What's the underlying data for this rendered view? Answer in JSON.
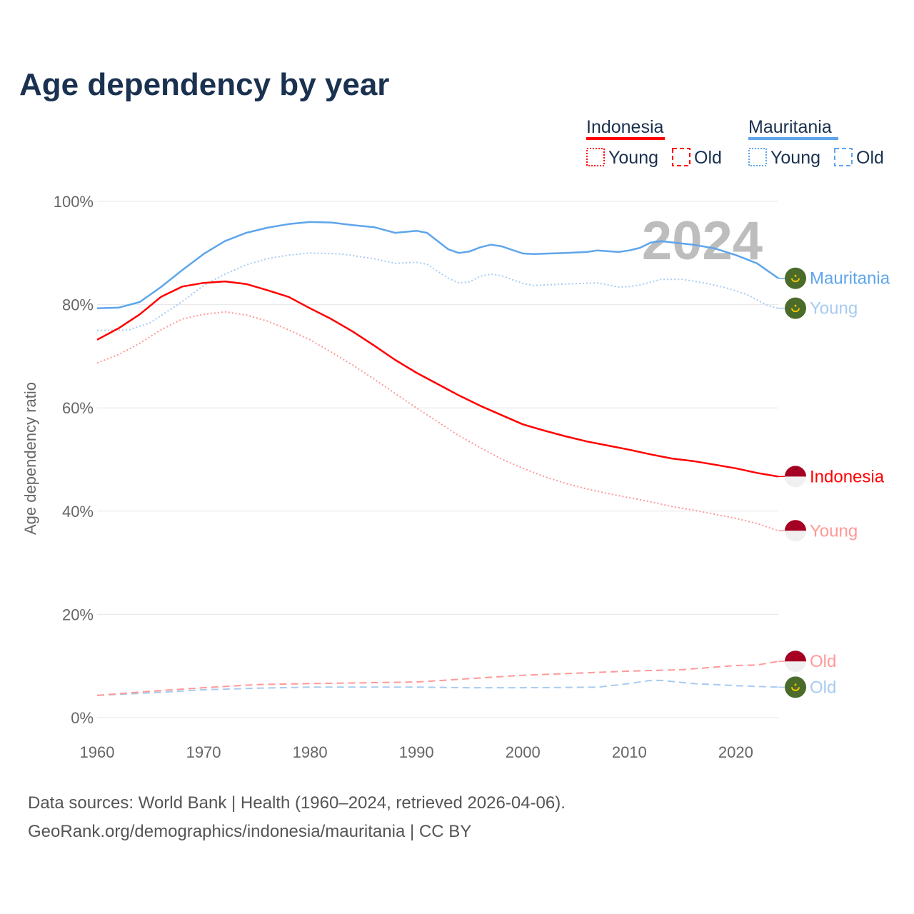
{
  "chart_data": {
    "type": "line",
    "title": "Age dependency by year",
    "ylabel": "Age dependency ratio",
    "xlabel": "",
    "xlim": [
      1960,
      2024
    ],
    "ylim": [
      0,
      100
    ],
    "x_ticks": [
      1960,
      1970,
      1980,
      1990,
      2000,
      2010,
      2020
    ],
    "y_ticks": [
      0,
      20,
      40,
      60,
      80,
      100
    ],
    "y_tick_labels": [
      "0%",
      "20%",
      "40%",
      "60%",
      "80%",
      "100%"
    ],
    "grid": true,
    "year_watermark": "2024",
    "legend": {
      "placement": "top-right",
      "groups": [
        {
          "name": "Indonesia",
          "color": "#ff0000",
          "items": [
            "Young",
            "Old"
          ]
        },
        {
          "name": "Mauritania",
          "color": "#5ea5ec",
          "items": [
            "Young",
            "Old"
          ]
        }
      ]
    },
    "series": [
      {
        "name": "Mauritania",
        "country": "Mauritania",
        "label": "Mauritania",
        "color": "#5ea5ec",
        "style": "solid",
        "points": [
          [
            1960,
            79.3
          ],
          [
            1962,
            79.4
          ],
          [
            1964,
            80.5
          ],
          [
            1966,
            83.4
          ],
          [
            1968,
            86.7
          ],
          [
            1970,
            89.8
          ],
          [
            1972,
            92.3
          ],
          [
            1974,
            93.9
          ],
          [
            1976,
            94.9
          ],
          [
            1978,
            95.6
          ],
          [
            1980,
            96.0
          ],
          [
            1982,
            95.9
          ],
          [
            1984,
            95.4
          ],
          [
            1986,
            95.0
          ],
          [
            1988,
            93.9
          ],
          [
            1990,
            94.3
          ],
          [
            1991,
            93.9
          ],
          [
            1993,
            90.7
          ],
          [
            1994,
            90.0
          ],
          [
            1995,
            90.3
          ],
          [
            1996,
            91.1
          ],
          [
            1997,
            91.6
          ],
          [
            1998,
            91.3
          ],
          [
            1999,
            90.6
          ],
          [
            2000,
            89.9
          ],
          [
            2001,
            89.8
          ],
          [
            2004,
            90.0
          ],
          [
            2006,
            90.2
          ],
          [
            2007,
            90.5
          ],
          [
            2009,
            90.2
          ],
          [
            2010,
            90.5
          ],
          [
            2011,
            91.0
          ],
          [
            2012,
            92.0
          ],
          [
            2013,
            92.3
          ],
          [
            2016,
            91.6
          ],
          [
            2018,
            90.9
          ],
          [
            2020,
            89.6
          ],
          [
            2022,
            88.0
          ],
          [
            2024,
            85.1
          ]
        ]
      },
      {
        "name": "Mauritania Young",
        "country": "Mauritania",
        "label": "Young",
        "color": "#a8cbf0",
        "style": "dotted",
        "points": [
          [
            1960,
            75.0
          ],
          [
            1963,
            75.1
          ],
          [
            1965,
            76.5
          ],
          [
            1968,
            80.6
          ],
          [
            1970,
            83.7
          ],
          [
            1972,
            85.9
          ],
          [
            1974,
            87.7
          ],
          [
            1976,
            88.9
          ],
          [
            1978,
            89.6
          ],
          [
            1980,
            90.0
          ],
          [
            1983,
            89.8
          ],
          [
            1986,
            88.9
          ],
          [
            1988,
            88.0
          ],
          [
            1990,
            88.2
          ],
          [
            1991,
            87.8
          ],
          [
            1993,
            85.1
          ],
          [
            1994,
            84.2
          ],
          [
            1995,
            84.4
          ],
          [
            1996,
            85.5
          ],
          [
            1997,
            85.9
          ],
          [
            1998,
            85.6
          ],
          [
            2000,
            84.1
          ],
          [
            2001,
            83.7
          ],
          [
            2004,
            84.0
          ],
          [
            2007,
            84.2
          ],
          [
            2009,
            83.4
          ],
          [
            2010,
            83.5
          ],
          [
            2011,
            83.8
          ],
          [
            2013,
            84.9
          ],
          [
            2015,
            84.9
          ],
          [
            2017,
            84.2
          ],
          [
            2019,
            83.3
          ],
          [
            2021,
            82.0
          ],
          [
            2023,
            79.8
          ],
          [
            2024,
            79.3
          ]
        ]
      },
      {
        "name": "Mauritania Old",
        "country": "Mauritania",
        "label": "Old",
        "color": "#a8cbf0",
        "style": "dashed",
        "points": [
          [
            1960,
            4.3
          ],
          [
            1965,
            4.8
          ],
          [
            1970,
            5.4
          ],
          [
            1975,
            5.7
          ],
          [
            1980,
            5.9
          ],
          [
            1990,
            5.9
          ],
          [
            1995,
            5.8
          ],
          [
            2000,
            5.8
          ],
          [
            2007,
            5.9
          ],
          [
            2010,
            6.6
          ],
          [
            2012,
            7.2
          ],
          [
            2013,
            7.2
          ],
          [
            2016,
            6.6
          ],
          [
            2020,
            6.2
          ],
          [
            2024,
            5.9
          ]
        ]
      },
      {
        "name": "Indonesia",
        "country": "Indonesia",
        "label": "Indonesia",
        "color": "#ff0000",
        "style": "solid",
        "points": [
          [
            1960,
            73.2
          ],
          [
            1962,
            75.4
          ],
          [
            1964,
            78.1
          ],
          [
            1966,
            81.5
          ],
          [
            1968,
            83.5
          ],
          [
            1970,
            84.2
          ],
          [
            1972,
            84.5
          ],
          [
            1974,
            84.0
          ],
          [
            1976,
            82.8
          ],
          [
            1978,
            81.5
          ],
          [
            1980,
            79.3
          ],
          [
            1982,
            77.2
          ],
          [
            1984,
            74.8
          ],
          [
            1986,
            72.1
          ],
          [
            1988,
            69.3
          ],
          [
            1990,
            66.8
          ],
          [
            1992,
            64.6
          ],
          [
            1994,
            62.4
          ],
          [
            1996,
            60.4
          ],
          [
            1998,
            58.6
          ],
          [
            2000,
            56.8
          ],
          [
            2002,
            55.6
          ],
          [
            2004,
            54.5
          ],
          [
            2006,
            53.5
          ],
          [
            2008,
            52.7
          ],
          [
            2010,
            51.9
          ],
          [
            2012,
            51.0
          ],
          [
            2014,
            50.2
          ],
          [
            2016,
            49.7
          ],
          [
            2018,
            49.0
          ],
          [
            2020,
            48.3
          ],
          [
            2022,
            47.4
          ],
          [
            2024,
            46.7
          ]
        ]
      },
      {
        "name": "Indonesia Young",
        "country": "Indonesia",
        "label": "Young",
        "color": "#ff9999",
        "style": "dotted",
        "points": [
          [
            1960,
            68.7
          ],
          [
            1962,
            70.3
          ],
          [
            1964,
            72.5
          ],
          [
            1966,
            75.1
          ],
          [
            1968,
            77.2
          ],
          [
            1970,
            78.1
          ],
          [
            1972,
            78.6
          ],
          [
            1974,
            78.0
          ],
          [
            1976,
            76.8
          ],
          [
            1978,
            75.1
          ],
          [
            1980,
            73.2
          ],
          [
            1982,
            70.8
          ],
          [
            1984,
            68.3
          ],
          [
            1986,
            65.6
          ],
          [
            1988,
            62.8
          ],
          [
            1990,
            60.0
          ],
          [
            1992,
            57.3
          ],
          [
            1994,
            54.6
          ],
          [
            1996,
            52.3
          ],
          [
            1998,
            50.1
          ],
          [
            2000,
            48.3
          ],
          [
            2002,
            46.7
          ],
          [
            2004,
            45.4
          ],
          [
            2006,
            44.3
          ],
          [
            2008,
            43.4
          ],
          [
            2010,
            42.6
          ],
          [
            2012,
            41.8
          ],
          [
            2014,
            40.9
          ],
          [
            2016,
            40.2
          ],
          [
            2018,
            39.4
          ],
          [
            2020,
            38.6
          ],
          [
            2022,
            37.6
          ],
          [
            2024,
            36.2
          ]
        ]
      },
      {
        "name": "Indonesia Old",
        "country": "Indonesia",
        "label": "Old",
        "color": "#ff9999",
        "style": "dashed",
        "points": [
          [
            1960,
            4.3
          ],
          [
            1965,
            5.1
          ],
          [
            1970,
            5.8
          ],
          [
            1975,
            6.4
          ],
          [
            1980,
            6.6
          ],
          [
            1990,
            6.9
          ],
          [
            2000,
            8.2
          ],
          [
            2005,
            8.6
          ],
          [
            2010,
            9.0
          ],
          [
            2015,
            9.3
          ],
          [
            2020,
            10.1
          ],
          [
            2022,
            10.2
          ],
          [
            2024,
            10.9
          ]
        ]
      }
    ]
  },
  "footer": {
    "line1": "Data sources: World Bank | Health (1960–2024, retrieved 2026-04-06).",
    "line2": "GeoRank.org/demographics/indonesia/mauritania | CC BY"
  }
}
